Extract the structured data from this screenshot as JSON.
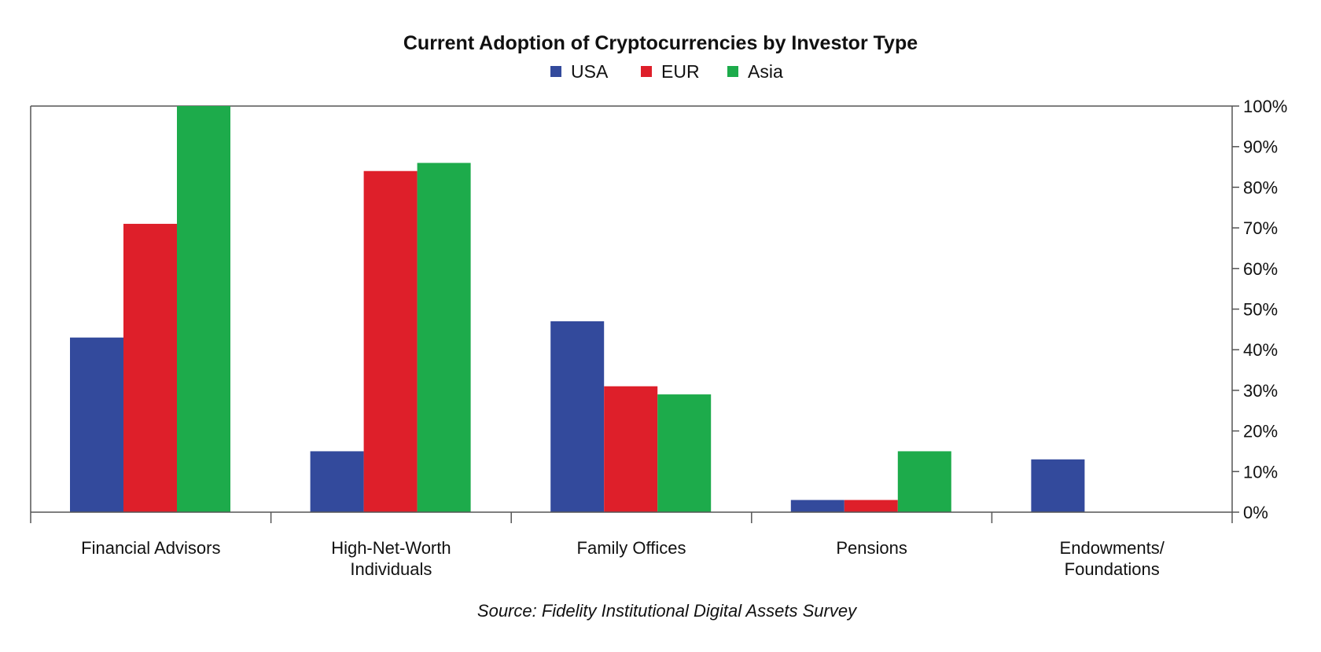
{
  "chart_data": {
    "type": "bar",
    "title": "Current Adoption of Cryptocurrencies by Investor Type",
    "source": "Source: Fidelity Institutional Digital Assets Survey",
    "categories": [
      [
        "Financial Advisors"
      ],
      [
        "High-Net-Worth",
        "Individuals"
      ],
      [
        "Family Offices"
      ],
      [
        "Pensions"
      ],
      [
        "Endowments/",
        "Foundations"
      ]
    ],
    "series": [
      {
        "name": "USA",
        "color": "#334a9c",
        "values": [
          43,
          15,
          47,
          3,
          13
        ]
      },
      {
        "name": "EUR",
        "color": "#de1f2a",
        "values": [
          71,
          84,
          31,
          3,
          0
        ]
      },
      {
        "name": "Asia",
        "color": "#1dab4b",
        "values": [
          100,
          86,
          29,
          15,
          0
        ]
      }
    ],
    "ylim": [
      0,
      100
    ],
    "yticks": [
      "0%",
      "10%",
      "20%",
      "30%",
      "40%",
      "50%",
      "60%",
      "70%",
      "80%",
      "90%",
      "100%"
    ],
    "y_axis_side": "right",
    "legend_position": "top-center",
    "grid": false
  }
}
